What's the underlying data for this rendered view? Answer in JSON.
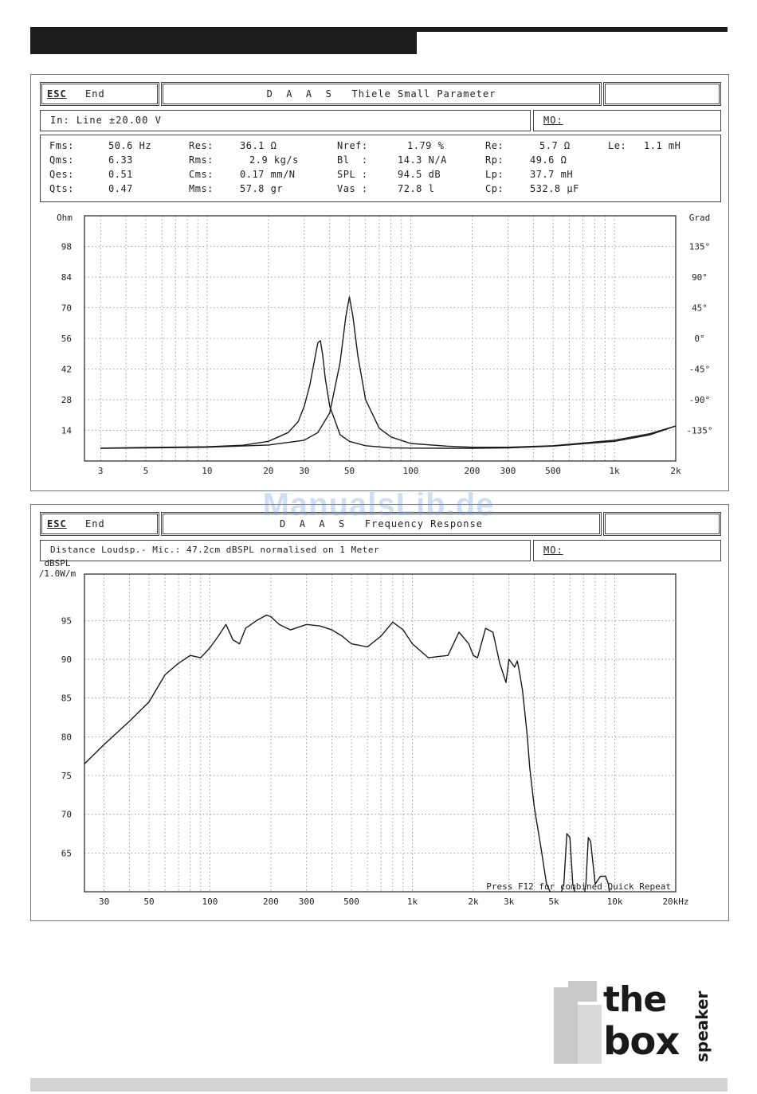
{
  "brand": {
    "logo_the": "the",
    "logo_box": "box",
    "logo_speaker": "speaker",
    "watermark": "ManualsLib.de"
  },
  "ts_panel": {
    "esc": "ESC",
    "end": "End",
    "title": "D  A  A  S   Thiele Small Parameter",
    "input_info": "In: Line  ±20.00 V",
    "memo": "MO:",
    "params": [
      {
        "label": "Fms:",
        "value": "50.6 Hz"
      },
      {
        "label": "Res:",
        "value": "36.1 Ω"
      },
      {
        "label": "Nref:",
        "value": "1.79 %"
      },
      {
        "label": "Re:",
        "value": "5.7 Ω"
      },
      {
        "label": "Le:",
        "value": "1.1 mH"
      },
      {
        "label": "Qms:",
        "value": "6.33"
      },
      {
        "label": "Rms:",
        "value": "2.9 kg/s"
      },
      {
        "label": "Bl  :",
        "value": "14.3 N/A"
      },
      {
        "label": "Rp:",
        "value": "49.6 Ω"
      },
      {
        "label": "Qes:",
        "value": "0.51"
      },
      {
        "label": "Cms:",
        "value": "0.17 mm/N"
      },
      {
        "label": "SPL :",
        "value": "94.5 dB"
      },
      {
        "label": "Lp:",
        "value": "37.7 mH"
      },
      {
        "label": "Qts:",
        "value": "0.47"
      },
      {
        "label": "Mms:",
        "value": "57.8 gr"
      },
      {
        "label": "Vas :",
        "value": "72.8 l"
      },
      {
        "label": "Cp:",
        "value": "532.8 µF"
      }
    ]
  },
  "fr_panel": {
    "esc": "ESC",
    "end": "End",
    "title": "D  A  A  S   Frequency Response",
    "info": "Distance Loudsp.- Mic.: 47.2cm dBSPL normalised on 1 Meter",
    "memo": "MO:",
    "footer": "Press F12 for combined Quick Repeat"
  },
  "chart_data": [
    {
      "type": "line",
      "ylabel": "Ohm",
      "y2label": "Grad",
      "xscale": "log",
      "xlim": [
        2.5,
        2000
      ],
      "ylim": [
        0,
        112
      ],
      "y2lim": [
        -180,
        180
      ],
      "xticks": [
        3,
        5,
        10,
        20,
        30,
        50,
        100,
        200,
        300,
        500,
        1000,
        2000
      ],
      "xticklabels": [
        "3",
        "5",
        "10",
        "20",
        "30",
        "50",
        "100",
        "200",
        "300",
        "500",
        "1k",
        "2k"
      ],
      "yticks": [
        14,
        28,
        42,
        56,
        70,
        84,
        98
      ],
      "y2ticks": [
        135,
        90,
        45,
        0,
        -45,
        -90,
        -135
      ],
      "y2ticklabels": [
        "135°",
        "90°",
        "45°",
        "0°",
        "-45°",
        "-90°",
        "-135°"
      ],
      "grid": true,
      "series": [
        {
          "x": [
            3,
            5,
            10,
            15,
            20,
            25,
            28,
            30,
            32,
            34,
            35,
            36,
            37,
            38,
            40,
            45,
            50,
            60,
            80,
            100,
            150,
            200,
            300,
            500,
            1000,
            1500,
            2000
          ],
          "y": [
            5.9,
            6.2,
            6.5,
            7.2,
            9,
            13,
            18,
            25,
            35,
            48,
            54,
            55,
            48,
            38,
            25,
            12,
            9,
            7,
            6,
            5.9,
            5.8,
            5.8,
            6,
            6.8,
            9,
            12,
            16
          ]
        },
        {
          "x": [
            3,
            5,
            10,
            20,
            30,
            35,
            40,
            45,
            48,
            50,
            52,
            55,
            60,
            70,
            80,
            100,
            150,
            200,
            300,
            500,
            1000,
            1500,
            2000
          ],
          "y": [
            5.8,
            6,
            6.3,
            7.3,
            9.5,
            13,
            22,
            45,
            66,
            75,
            66,
            48,
            28,
            15,
            11,
            8,
            6.8,
            6.3,
            6.3,
            7,
            9.5,
            12.5,
            16
          ]
        }
      ]
    },
    {
      "type": "line",
      "ylabel": "dBSPL /1.0W/m",
      "xlabel": "Hz",
      "xscale": "log",
      "xlim": [
        24,
        20000
      ],
      "ylim": [
        60,
        101
      ],
      "xticks": [
        30,
        50,
        100,
        200,
        300,
        500,
        1000,
        2000,
        3000,
        5000,
        10000,
        20000
      ],
      "xticklabels": [
        "30",
        "50",
        "100",
        "200",
        "300",
        "500",
        "1k",
        "2k",
        "3k",
        "5k",
        "10k",
        "20kHz"
      ],
      "yticks": [
        65,
        70,
        75,
        80,
        85,
        90,
        95
      ],
      "grid": true,
      "series": [
        {
          "x": [
            24,
            30,
            40,
            50,
            60,
            70,
            80,
            90,
            100,
            110,
            120,
            130,
            140,
            150,
            170,
            190,
            200,
            220,
            250,
            300,
            350,
            400,
            450,
            500,
            600,
            700,
            800,
            900,
            1000,
            1200,
            1500,
            1700,
            1900,
            2000,
            2100,
            2300,
            2500,
            2700,
            2900,
            3000,
            3100,
            3200,
            3300,
            3400,
            3500,
            3600,
            3700,
            3800,
            4000,
            4300,
            4600,
            5000,
            5300,
            5600,
            5800,
            6000,
            6200,
            6500,
            7000,
            7200,
            7400,
            7600,
            8000,
            8500,
            9000,
            9300,
            9500,
            9700,
            10000,
            10300,
            10800,
            11500,
            12500,
            13500
          ],
          "y": [
            76.5,
            79,
            82,
            84.5,
            88,
            89.5,
            90.5,
            90.2,
            91.5,
            93,
            94.5,
            92.5,
            92,
            94,
            95,
            95.7,
            95.5,
            94.5,
            93.8,
            94.5,
            94.3,
            93.8,
            93,
            92,
            91.6,
            93,
            94.8,
            93.8,
            92,
            90.2,
            90.5,
            93.5,
            92,
            90.5,
            90.2,
            94,
            93.5,
            89.5,
            87,
            90,
            89.5,
            89,
            89.8,
            88,
            86,
            83,
            80,
            76,
            71,
            66,
            61,
            59,
            59,
            61,
            67.5,
            67,
            61,
            59,
            59,
            61,
            67,
            66.5,
            61,
            62,
            62,
            61,
            59,
            59,
            59,
            59,
            59,
            59,
            59,
            59
          ]
        }
      ]
    }
  ]
}
